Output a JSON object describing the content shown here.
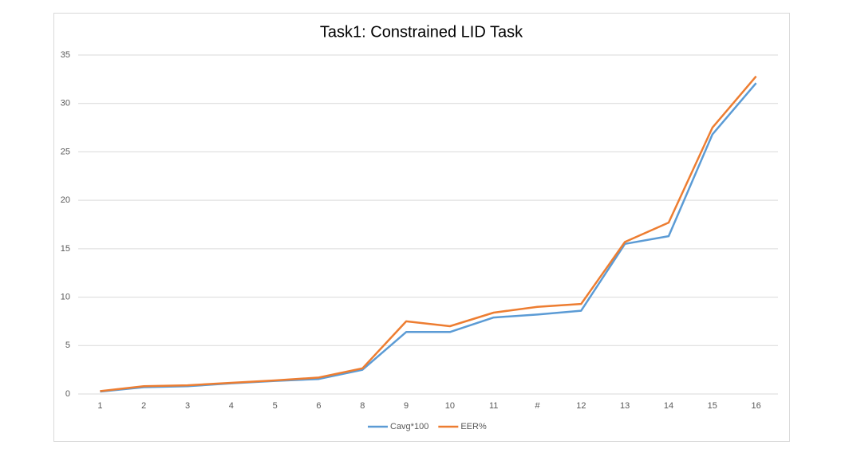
{
  "chart_data": {
    "type": "line",
    "title": "Task1: Constrained LID Task",
    "categories": [
      "1",
      "2",
      "3",
      "4",
      "5",
      "6",
      "8",
      "9",
      "10",
      "11",
      "#",
      "12",
      "13",
      "14",
      "15",
      "16"
    ],
    "series": [
      {
        "name": "Cavg*100",
        "color": "#5b9bd5",
        "values": [
          0.25,
          0.7,
          0.8,
          1.1,
          1.35,
          1.55,
          2.5,
          6.4,
          6.4,
          7.9,
          8.2,
          8.6,
          15.5,
          16.3,
          26.8,
          32.1
        ]
      },
      {
        "name": "EER%",
        "color": "#ed7d31",
        "values": [
          0.3,
          0.8,
          0.9,
          1.15,
          1.4,
          1.7,
          2.65,
          7.5,
          7.0,
          8.4,
          9.0,
          9.3,
          15.7,
          17.7,
          27.5,
          32.8
        ]
      }
    ],
    "ylim": [
      0,
      35
    ],
    "yticks": [
      0,
      5,
      10,
      15,
      20,
      25,
      30,
      35
    ],
    "grid": true,
    "legend": "bottom"
  }
}
